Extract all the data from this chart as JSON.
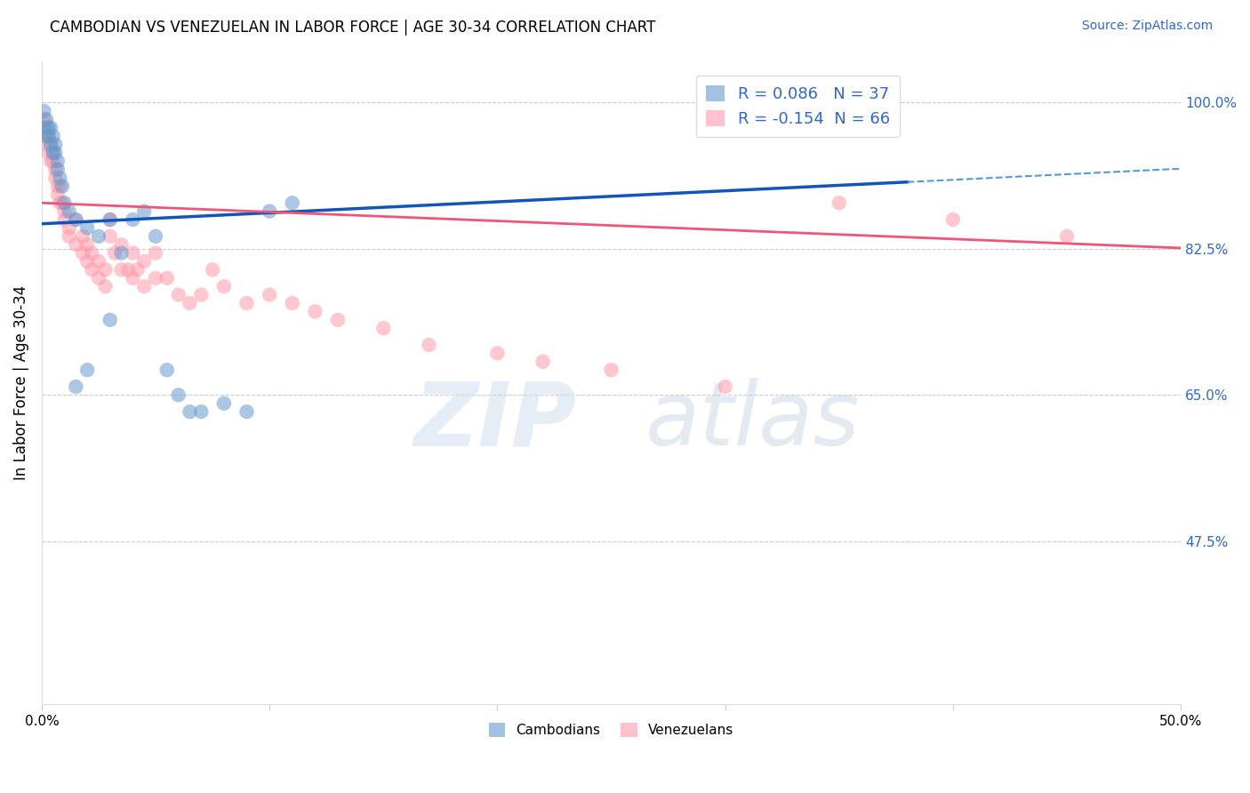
{
  "title": "CAMBODIAN VS VENEZUELAN IN LABOR FORCE | AGE 30-34 CORRELATION CHART",
  "source": "Source: ZipAtlas.com",
  "ylabel": "In Labor Force | Age 30-34",
  "ytick_labels": [
    "100.0%",
    "82.5%",
    "65.0%",
    "47.5%"
  ],
  "ytick_values": [
    1.0,
    0.825,
    0.65,
    0.475
  ],
  "xmin": 0.0,
  "xmax": 0.5,
  "ymin": 0.28,
  "ymax": 1.05,
  "cambodian_color": "#6699CC",
  "venezuelan_color": "#FF99AA",
  "cambodian_R": 0.086,
  "cambodian_N": 37,
  "venezuelan_R": -0.154,
  "venezuelan_N": 66,
  "watermark_zip": "ZIP",
  "watermark_atlas": "atlas",
  "cambodian_x": [
    0.001,
    0.001,
    0.002,
    0.002,
    0.003,
    0.003,
    0.004,
    0.004,
    0.005,
    0.005,
    0.006,
    0.006,
    0.007,
    0.007,
    0.008,
    0.009,
    0.01,
    0.012,
    0.015,
    0.02,
    0.025,
    0.03,
    0.035,
    0.04,
    0.05,
    0.055,
    0.06,
    0.065,
    0.07,
    0.08,
    0.09,
    0.1,
    0.11,
    0.03,
    0.045,
    0.02,
    0.015
  ],
  "cambodian_y": [
    0.99,
    0.97,
    0.98,
    0.96,
    0.97,
    0.96,
    0.97,
    0.95,
    0.96,
    0.94,
    0.95,
    0.94,
    0.93,
    0.92,
    0.91,
    0.9,
    0.88,
    0.87,
    0.86,
    0.85,
    0.84,
    0.86,
    0.82,
    0.86,
    0.84,
    0.68,
    0.65,
    0.63,
    0.63,
    0.64,
    0.63,
    0.87,
    0.88,
    0.74,
    0.87,
    0.68,
    0.66
  ],
  "venezuelan_x": [
    0.001,
    0.001,
    0.002,
    0.002,
    0.003,
    0.003,
    0.004,
    0.004,
    0.005,
    0.005,
    0.006,
    0.006,
    0.007,
    0.007,
    0.008,
    0.008,
    0.009,
    0.01,
    0.01,
    0.012,
    0.012,
    0.015,
    0.015,
    0.018,
    0.018,
    0.02,
    0.02,
    0.022,
    0.022,
    0.025,
    0.025,
    0.028,
    0.028,
    0.03,
    0.03,
    0.032,
    0.035,
    0.035,
    0.038,
    0.04,
    0.04,
    0.042,
    0.045,
    0.045,
    0.05,
    0.05,
    0.055,
    0.06,
    0.065,
    0.07,
    0.075,
    0.08,
    0.09,
    0.1,
    0.11,
    0.12,
    0.13,
    0.15,
    0.17,
    0.2,
    0.22,
    0.25,
    0.3,
    0.35,
    0.4,
    0.45
  ],
  "venezuelan_y": [
    0.98,
    0.96,
    0.97,
    0.95,
    0.96,
    0.94,
    0.95,
    0.93,
    0.94,
    0.93,
    0.92,
    0.91,
    0.9,
    0.89,
    0.88,
    0.9,
    0.88,
    0.87,
    0.86,
    0.85,
    0.84,
    0.86,
    0.83,
    0.84,
    0.82,
    0.83,
    0.81,
    0.82,
    0.8,
    0.81,
    0.79,
    0.8,
    0.78,
    0.86,
    0.84,
    0.82,
    0.83,
    0.8,
    0.8,
    0.82,
    0.79,
    0.8,
    0.81,
    0.78,
    0.82,
    0.79,
    0.79,
    0.77,
    0.76,
    0.77,
    0.8,
    0.78,
    0.76,
    0.77,
    0.76,
    0.75,
    0.74,
    0.73,
    0.71,
    0.7,
    0.69,
    0.68,
    0.66,
    0.88,
    0.86,
    0.84
  ],
  "trend_blue_x0": 0.0,
  "trend_blue_y0": 0.855,
  "trend_blue_x_solid": 0.38,
  "trend_blue_y_solid": 0.905,
  "trend_blue_x_dash": 0.5,
  "trend_blue_y_dash": 0.921,
  "trend_pink_x0": 0.0,
  "trend_pink_y0": 0.88,
  "trend_pink_x1": 0.5,
  "trend_pink_y1": 0.826
}
